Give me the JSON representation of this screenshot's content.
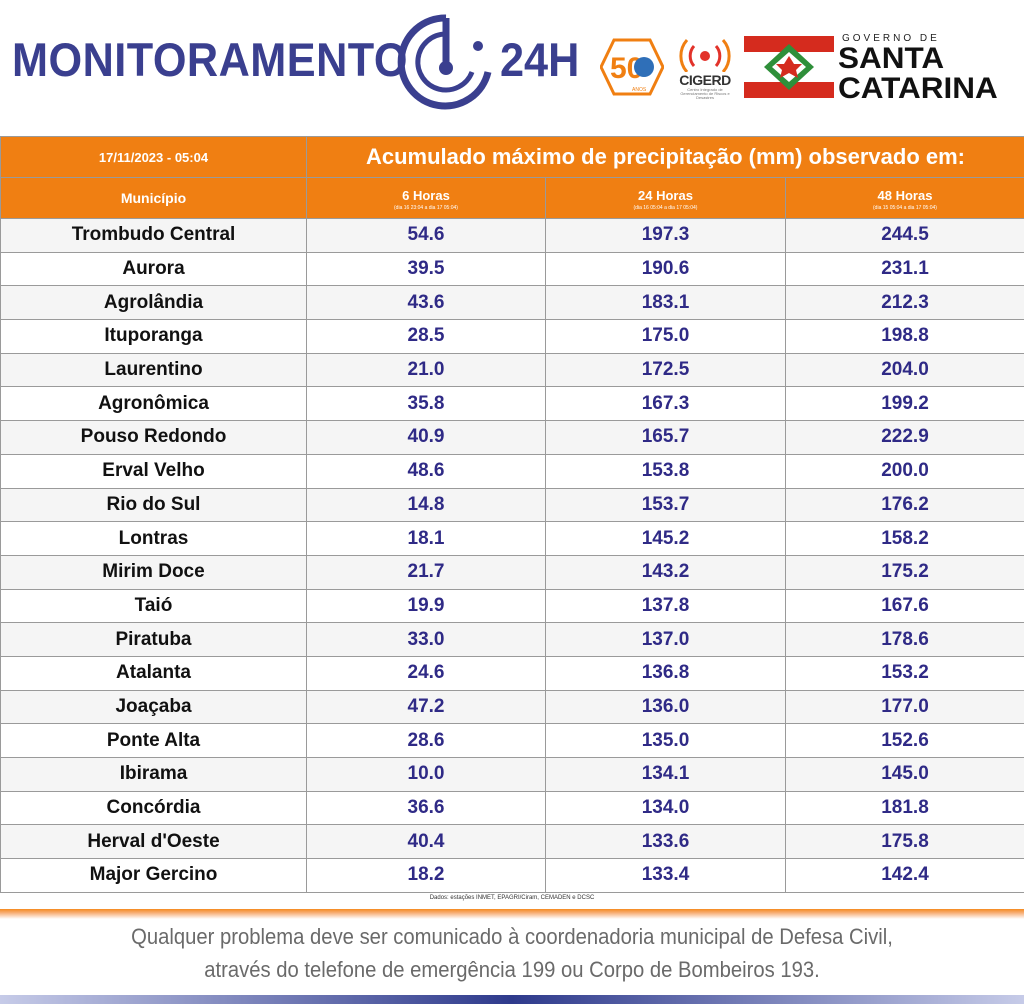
{
  "header": {
    "title_left": "MONITORAMENTO",
    "title_right": "24H",
    "badge_50": "50",
    "badge_50_sub": "ANOS",
    "cigerd": "CIGERD",
    "cigerd_sub": "Centro Integrado de Gerenciamento de Riscos e Desastres",
    "gov_small": "GOVERNO DE",
    "gov_line1": "SANTA",
    "gov_line2": "CATARINA",
    "brand_color": "#3a3f8f",
    "accent_orange": "#f07f12"
  },
  "table": {
    "date": "17/11/2023 - 05:04",
    "title": "Acumulado máximo de precipitação (mm) observado em:",
    "municipio_label": "Município",
    "columns": [
      {
        "label": "6 Horas",
        "sub": "(dia 16 23:04 a dia 17 05:04)"
      },
      {
        "label": "24 Horas",
        "sub": "(dia 16 05:04 a dia 17 05:04)"
      },
      {
        "label": "48 Horas",
        "sub": "(dia 15 05:04 a dia 17 05:04)"
      }
    ],
    "rows": [
      {
        "name": "Trombudo Central",
        "h6": "54.6",
        "h24": "197.3",
        "h48": "244.5"
      },
      {
        "name": "Aurora",
        "h6": "39.5",
        "h24": "190.6",
        "h48": "231.1"
      },
      {
        "name": "Agrolândia",
        "h6": "43.6",
        "h24": "183.1",
        "h48": "212.3"
      },
      {
        "name": "Ituporanga",
        "h6": "28.5",
        "h24": "175.0",
        "h48": "198.8"
      },
      {
        "name": "Laurentino",
        "h6": "21.0",
        "h24": "172.5",
        "h48": "204.0"
      },
      {
        "name": "Agronômica",
        "h6": "35.8",
        "h24": "167.3",
        "h48": "199.2"
      },
      {
        "name": "Pouso Redondo",
        "h6": "40.9",
        "h24": "165.7",
        "h48": "222.9"
      },
      {
        "name": "Erval Velho",
        "h6": "48.6",
        "h24": "153.8",
        "h48": "200.0"
      },
      {
        "name": "Rio do Sul",
        "h6": "14.8",
        "h24": "153.7",
        "h48": "176.2"
      },
      {
        "name": "Lontras",
        "h6": "18.1",
        "h24": "145.2",
        "h48": "158.2"
      },
      {
        "name": "Mirim Doce",
        "h6": "21.7",
        "h24": "143.2",
        "h48": "175.2"
      },
      {
        "name": "Taió",
        "h6": "19.9",
        "h24": "137.8",
        "h48": "167.6"
      },
      {
        "name": "Piratuba",
        "h6": "33.0",
        "h24": "137.0",
        "h48": "178.6"
      },
      {
        "name": "Atalanta",
        "h6": "24.6",
        "h24": "136.8",
        "h48": "153.2"
      },
      {
        "name": "Joaçaba",
        "h6": "47.2",
        "h24": "136.0",
        "h48": "177.0"
      },
      {
        "name": "Ponte Alta",
        "h6": "28.6",
        "h24": "135.0",
        "h48": "152.6"
      },
      {
        "name": "Ibirama",
        "h6": "10.0",
        "h24": "134.1",
        "h48": "145.0"
      },
      {
        "name": "Concórdia",
        "h6": "36.6",
        "h24": "134.0",
        "h48": "181.8"
      },
      {
        "name": "Herval d'Oeste",
        "h6": "40.4",
        "h24": "133.6",
        "h48": "175.8"
      },
      {
        "name": "Major Gercino",
        "h6": "18.2",
        "h24": "133.4",
        "h48": "142.4"
      }
    ],
    "source": "Dados: estações INMET, EPAGRI/Ciram, CEMADEN e DCSC"
  },
  "footer": {
    "line1": "Qualquer problema deve ser comunicado à coordenadoria municipal de Defesa Civil,",
    "line2": "através do telefone de emergência 199 ou Corpo de Bombeiros 193."
  }
}
